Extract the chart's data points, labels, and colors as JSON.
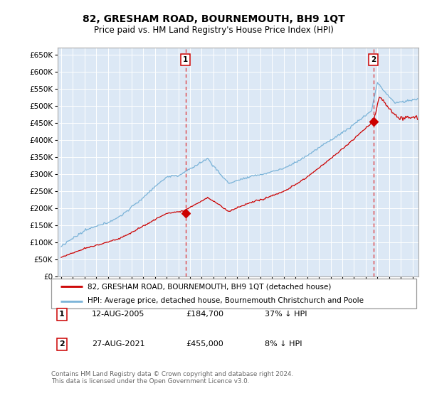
{
  "title": "82, GRESHAM ROAD, BOURNEMOUTH, BH9 1QT",
  "subtitle": "Price paid vs. HM Land Registry's House Price Index (HPI)",
  "legend_line1": "82, GRESHAM ROAD, BOURNEMOUTH, BH9 1QT (detached house)",
  "legend_line2": "HPI: Average price, detached house, Bournemouth Christchurch and Poole",
  "annotation1_date": "12-AUG-2005",
  "annotation1_price": "£184,700",
  "annotation1_pct": "37% ↓ HPI",
  "annotation2_date": "27-AUG-2021",
  "annotation2_price": "£455,000",
  "annotation2_pct": "8% ↓ HPI",
  "footer": "Contains HM Land Registry data © Crown copyright and database right 2024.\nThis data is licensed under the Open Government Licence v3.0.",
  "sale1_x": 2005.62,
  "sale1_y": 184700,
  "sale2_x": 2021.65,
  "sale2_y": 455000,
  "hpi_color": "#7ab3d8",
  "price_color": "#cc0000",
  "plot_bg": "#dce8f5",
  "ylim": [
    0,
    670000
  ],
  "xlim_start": 1994.7,
  "xlim_end": 2025.5
}
